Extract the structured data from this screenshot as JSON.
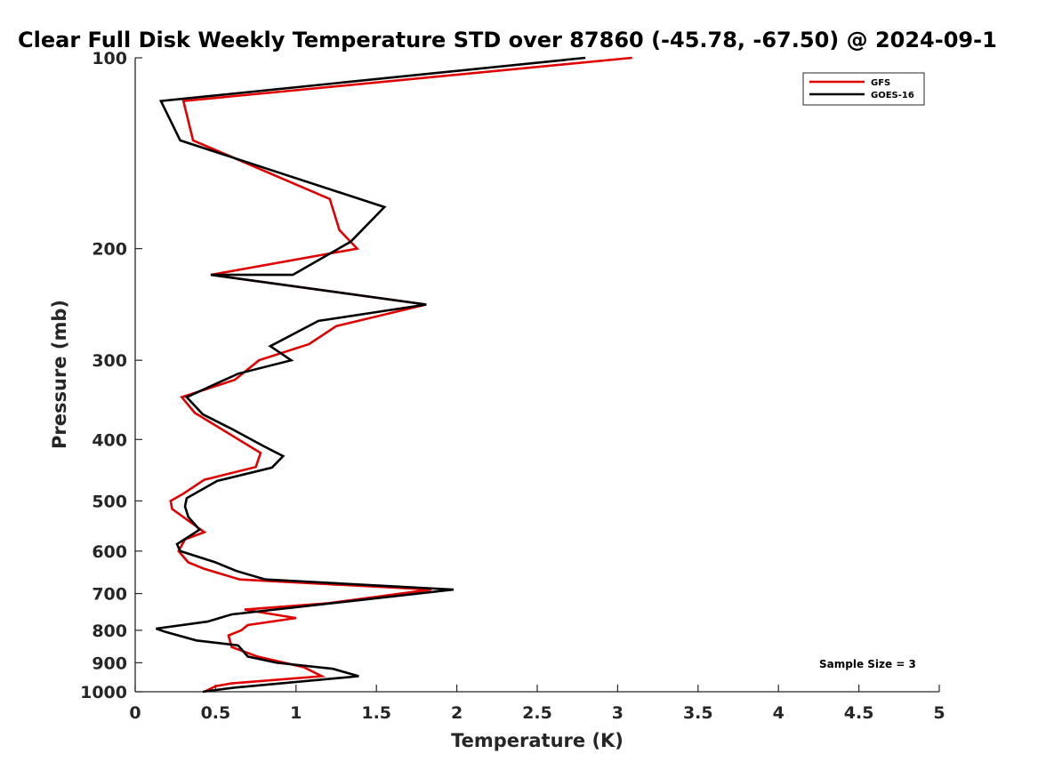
{
  "chart_data": {
    "type": "line",
    "title": "Clear Full Disk Weekly Temperature STD over 87860 (-45.78, -67.50) @ 2024-09-1",
    "xlabel": "Temperature (K)",
    "ylabel": "Pressure (mb)",
    "xlim": [
      0,
      5
    ],
    "ylim": [
      1000,
      100
    ],
    "y_scale": "log",
    "x_ticks": [
      "0",
      "0.5",
      "1",
      "1.5",
      "2",
      "2.5",
      "3",
      "3.5",
      "4",
      "4.5",
      "5"
    ],
    "x_tick_values": [
      0,
      0.5,
      1,
      1.5,
      2,
      2.5,
      3,
      3.5,
      4,
      4.5,
      5
    ],
    "y_ticks": [
      "100",
      "200",
      "300",
      "400",
      "500",
      "600",
      "700",
      "800",
      "900",
      "1000"
    ],
    "y_tick_values": [
      100,
      200,
      300,
      400,
      500,
      600,
      700,
      800,
      900,
      1000
    ],
    "legend_placement": "top-right",
    "grid": false,
    "annotation": "Sample Size = 3",
    "series": [
      {
        "name": "GFS",
        "color": "#e00000",
        "points": [
          [
            3.09,
            100
          ],
          [
            0.3,
            117
          ],
          [
            0.36,
            135
          ],
          [
            1.21,
            167
          ],
          [
            1.27,
            187
          ],
          [
            1.38,
            200
          ],
          [
            0.47,
            220
          ],
          [
            1.81,
            245
          ],
          [
            1.25,
            265
          ],
          [
            1.08,
            283
          ],
          [
            0.77,
            300
          ],
          [
            0.62,
            322
          ],
          [
            0.29,
            343
          ],
          [
            0.37,
            363
          ],
          [
            0.78,
            420
          ],
          [
            0.75,
            442
          ],
          [
            0.43,
            463
          ],
          [
            0.3,
            487
          ],
          [
            0.22,
            500
          ],
          [
            0.23,
            515
          ],
          [
            0.43,
            560
          ],
          [
            0.31,
            575
          ],
          [
            0.27,
            600
          ],
          [
            0.33,
            625
          ],
          [
            0.43,
            640
          ],
          [
            0.65,
            665
          ],
          [
            1.84,
            690
          ],
          [
            1.2,
            725
          ],
          [
            0.68,
            742
          ],
          [
            1.0,
            765
          ],
          [
            0.7,
            785
          ],
          [
            0.66,
            800
          ],
          [
            0.58,
            815
          ],
          [
            0.6,
            850
          ],
          [
            0.76,
            880
          ],
          [
            1.05,
            915
          ],
          [
            1.16,
            945
          ],
          [
            0.6,
            970
          ],
          [
            0.5,
            980
          ],
          [
            0.43,
            1000
          ]
        ]
      },
      {
        "name": "GOES-16",
        "color": "#000000",
        "points": [
          [
            2.8,
            100
          ],
          [
            0.16,
            117
          ],
          [
            0.28,
            135
          ],
          [
            1.55,
            172
          ],
          [
            1.34,
            195
          ],
          [
            0.98,
            220
          ],
          [
            0.47,
            220
          ],
          [
            1.81,
            245
          ],
          [
            1.14,
            260
          ],
          [
            0.84,
            285
          ],
          [
            0.97,
            300
          ],
          [
            0.64,
            315
          ],
          [
            0.32,
            343
          ],
          [
            0.42,
            365
          ],
          [
            0.6,
            385
          ],
          [
            0.8,
            410
          ],
          [
            0.92,
            425
          ],
          [
            0.85,
            443
          ],
          [
            0.51,
            465
          ],
          [
            0.32,
            495
          ],
          [
            0.31,
            510
          ],
          [
            0.33,
            530
          ],
          [
            0.4,
            555
          ],
          [
            0.26,
            585
          ],
          [
            0.28,
            600
          ],
          [
            0.5,
            625
          ],
          [
            0.63,
            645
          ],
          [
            0.81,
            665
          ],
          [
            1.98,
            690
          ],
          [
            0.6,
            755
          ],
          [
            0.45,
            775
          ],
          [
            0.13,
            795
          ],
          [
            0.19,
            805
          ],
          [
            0.38,
            830
          ],
          [
            0.64,
            845
          ],
          [
            0.7,
            880
          ],
          [
            0.88,
            900
          ],
          [
            1.23,
            920
          ],
          [
            1.39,
            945
          ],
          [
            0.62,
            985
          ],
          [
            0.42,
            1000
          ]
        ]
      }
    ]
  }
}
